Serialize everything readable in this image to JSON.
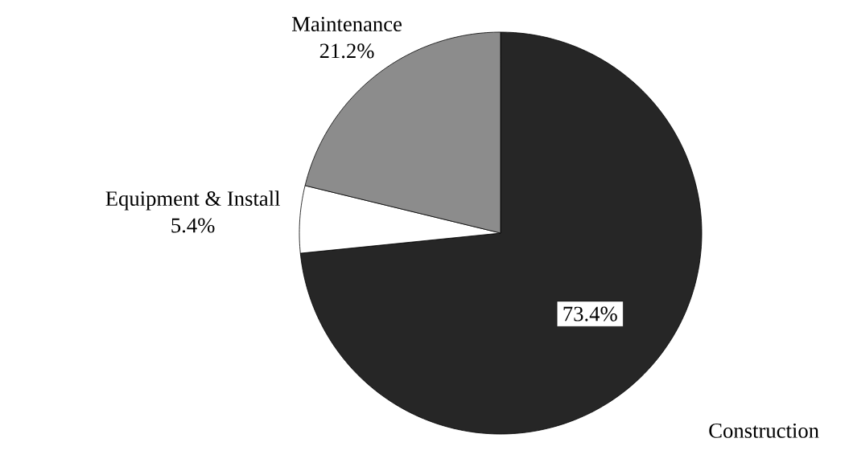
{
  "chart_data": {
    "type": "pie",
    "categories": [
      "Construction",
      "Equipment & Install",
      "Maintenance"
    ],
    "values": [
      73.4,
      5.4,
      21.2
    ],
    "value_labels": [
      "73.4%",
      "5.4%",
      "21.2%"
    ],
    "colors": [
      "#262626",
      "#ffffff",
      "#8c8c8c"
    ]
  }
}
